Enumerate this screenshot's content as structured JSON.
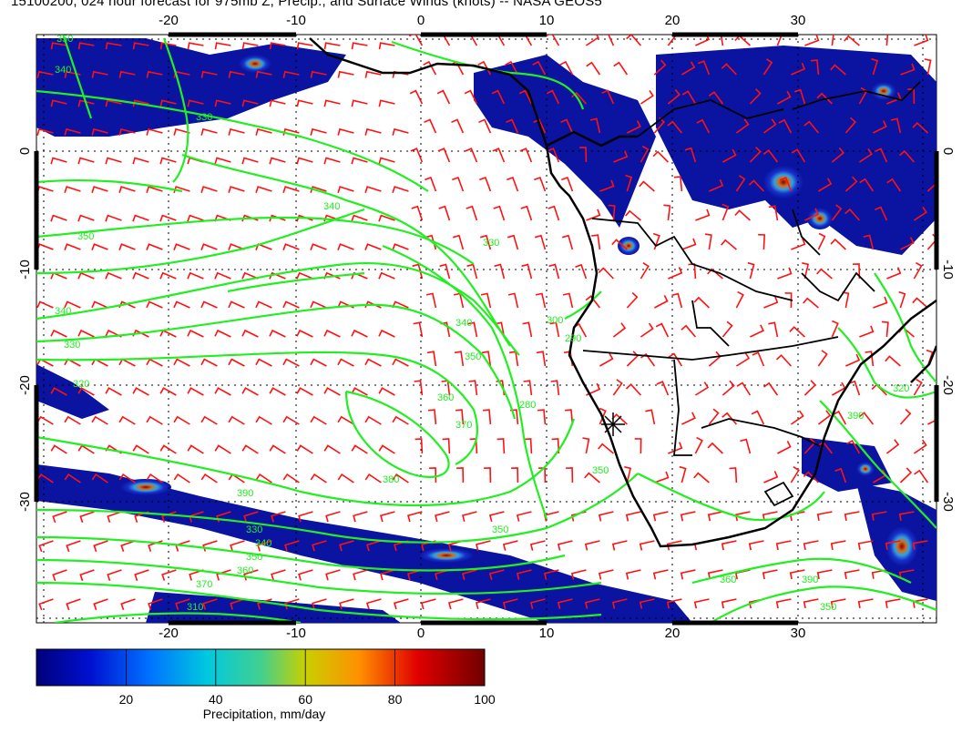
{
  "title": "15100200, 024 hour forecast for 975mb Z, Precip., and Surface Winds (knots) -- NASA GEOS5",
  "map": {
    "lon_labels_top": [
      "-20",
      "-10",
      "0",
      "10",
      "20",
      "30"
    ],
    "lon_labels_bottom": [
      "-20",
      "-10",
      "0",
      "10",
      "20",
      "30"
    ],
    "lat_labels_left": [
      "0",
      "-10",
      "-20",
      "-30"
    ],
    "lat_labels_right": [
      "0",
      "-10",
      "-20",
      "-30"
    ],
    "contour_labels": [
      "350",
      "340",
      "330",
      "340",
      "350",
      "340",
      "330",
      "320",
      "330",
      "340",
      "350",
      "360",
      "370",
      "380",
      "390",
      "330",
      "340",
      "350",
      "360",
      "370",
      "310",
      "300",
      "290",
      "280",
      "350",
      "350",
      "360",
      "390",
      "350",
      "390",
      "320"
    ],
    "marker": "asterisk-marker"
  },
  "colorbar": {
    "tick_labels": [
      "20",
      "40",
      "60",
      "80",
      "100"
    ],
    "label": "Precipitation, mm/day",
    "min": 0,
    "max": 100
  },
  "colors": {
    "contour": "#22ee22",
    "wind_barb": "#ff1111",
    "coastline": "#000000",
    "precip_low": "#0a14a0",
    "precip_high": "#7a0000"
  }
}
